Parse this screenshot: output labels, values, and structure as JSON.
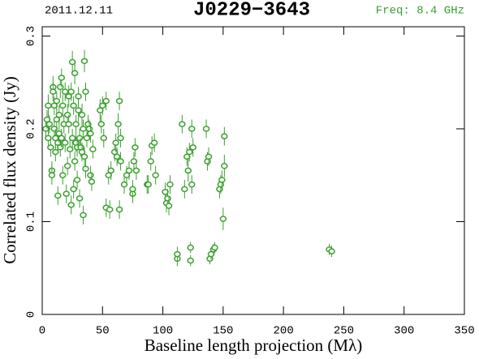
{
  "chart_data": {
    "type": "scatter",
    "title": "J0229−3643",
    "annotations": [
      {
        "text": "2011.12.11",
        "color": "#000000"
      },
      {
        "text": "Freq: 8.4 GHz",
        "color": "#3aa02e"
      }
    ],
    "x_label": "Baseline length projection (Mλ)",
    "y_label": "Correlated flux density (Jy)",
    "xlim": [
      0,
      350
    ],
    "ylim": [
      0,
      0.31
    ],
    "xticks": [
      0,
      50,
      100,
      150,
      200,
      250,
      300,
      350
    ],
    "yticks": [
      0,
      0.1,
      0.2,
      0.3
    ],
    "series": [
      {
        "color": "#3aa02e",
        "x": [
          3,
          4,
          5,
          5,
          6,
          7,
          8,
          8,
          9,
          9,
          10,
          10,
          11,
          11,
          12,
          12,
          13,
          13,
          14,
          14,
          15,
          15,
          16,
          16,
          17,
          17,
          18,
          19,
          19,
          20,
          21,
          21,
          22,
          22,
          23,
          24,
          24,
          25,
          25,
          26,
          26,
          27,
          27,
          28,
          28,
          29,
          29,
          30,
          30,
          31,
          31,
          32,
          33,
          33,
          34,
          34,
          35,
          35,
          36,
          36,
          37,
          38,
          39,
          40,
          40,
          41,
          42,
          48,
          49,
          50,
          51,
          53,
          53,
          55,
          56,
          57,
          60,
          61,
          62,
          63,
          64,
          64,
          65,
          65,
          68,
          70,
          72,
          75,
          75,
          76,
          77,
          78,
          87,
          88,
          90,
          91,
          93,
          94,
          102,
          103,
          104,
          105,
          106,
          112,
          112,
          116,
          118,
          120,
          121,
          122,
          123,
          123,
          124,
          124,
          125,
          136,
          137,
          138,
          139,
          140,
          142,
          143,
          147,
          148,
          149,
          150,
          151,
          151,
          238,
          240
        ],
        "values": [
          0.2,
          0.21,
          0.225,
          0.19,
          0.205,
          0.18,
          0.155,
          0.15,
          0.245,
          0.24,
          0.225,
          0.2,
          0.19,
          0.175,
          0.21,
          0.23,
          0.185,
          0.128,
          0.195,
          0.215,
          0.245,
          0.18,
          0.255,
          0.19,
          0.225,
          0.15,
          0.205,
          0.185,
          0.24,
          0.13,
          0.215,
          0.16,
          0.205,
          0.235,
          0.178,
          0.118,
          0.24,
          0.272,
          0.19,
          0.135,
          0.225,
          0.26,
          0.165,
          0.185,
          0.205,
          0.145,
          0.18,
          0.22,
          0.235,
          0.125,
          0.19,
          0.18,
          0.215,
          0.175,
          0.107,
          0.2,
          0.273,
          0.17,
          0.24,
          0.157,
          0.19,
          0.205,
          0.2,
          0.195,
          0.15,
          0.143,
          0.178,
          0.22,
          0.205,
          0.225,
          0.19,
          0.23,
          0.115,
          0.15,
          0.113,
          0.155,
          0.175,
          0.185,
          0.17,
          0.205,
          0.23,
          0.113,
          0.19,
          0.165,
          0.14,
          0.15,
          0.155,
          0.13,
          0.135,
          0.165,
          0.18,
          0.155,
          0.14,
          0.14,
          0.165,
          0.182,
          0.185,
          0.15,
          0.132,
          0.12,
          0.125,
          0.117,
          0.14,
          0.06,
          0.065,
          0.205,
          0.135,
          0.17,
          0.155,
          0.175,
          0.058,
          0.072,
          0.2,
          0.14,
          0.18,
          0.2,
          0.165,
          0.17,
          0.06,
          0.065,
          0.07,
          0.072,
          0.135,
          0.14,
          0.145,
          0.103,
          0.192,
          0.16,
          0.07,
          0.068
        ],
        "errors": [
          0.01,
          0.01,
          0.012,
          0.01,
          0.01,
          0.01,
          0.01,
          0.01,
          0.012,
          0.01,
          0.01,
          0.01,
          0.01,
          0.01,
          0.012,
          0.01,
          0.01,
          0.01,
          0.01,
          0.01,
          0.012,
          0.01,
          0.01,
          0.01,
          0.012,
          0.01,
          0.01,
          0.01,
          0.01,
          0.01,
          0.012,
          0.01,
          0.01,
          0.012,
          0.01,
          0.01,
          0.01,
          0.012,
          0.01,
          0.01,
          0.01,
          0.012,
          0.01,
          0.01,
          0.01,
          0.01,
          0.01,
          0.012,
          0.01,
          0.01,
          0.01,
          0.01,
          0.012,
          0.01,
          0.01,
          0.01,
          0.012,
          0.01,
          0.01,
          0.01,
          0.01,
          0.01,
          0.01,
          0.01,
          0.01,
          0.01,
          0.01,
          0.012,
          0.01,
          0.01,
          0.01,
          0.01,
          0.01,
          0.01,
          0.01,
          0.01,
          0.01,
          0.01,
          0.01,
          0.012,
          0.01,
          0.01,
          0.01,
          0.01,
          0.01,
          0.01,
          0.01,
          0.01,
          0.01,
          0.01,
          0.01,
          0.01,
          0.01,
          0.01,
          0.01,
          0.01,
          0.01,
          0.01,
          0.01,
          0.01,
          0.01,
          0.01,
          0.01,
          0.008,
          0.008,
          0.01,
          0.01,
          0.01,
          0.012,
          0.01,
          0.006,
          0.006,
          0.01,
          0.01,
          0.01,
          0.01,
          0.01,
          0.01,
          0.006,
          0.006,
          0.006,
          0.006,
          0.01,
          0.01,
          0.01,
          0.012,
          0.01,
          0.012,
          0.006,
          0.006
        ]
      }
    ]
  }
}
